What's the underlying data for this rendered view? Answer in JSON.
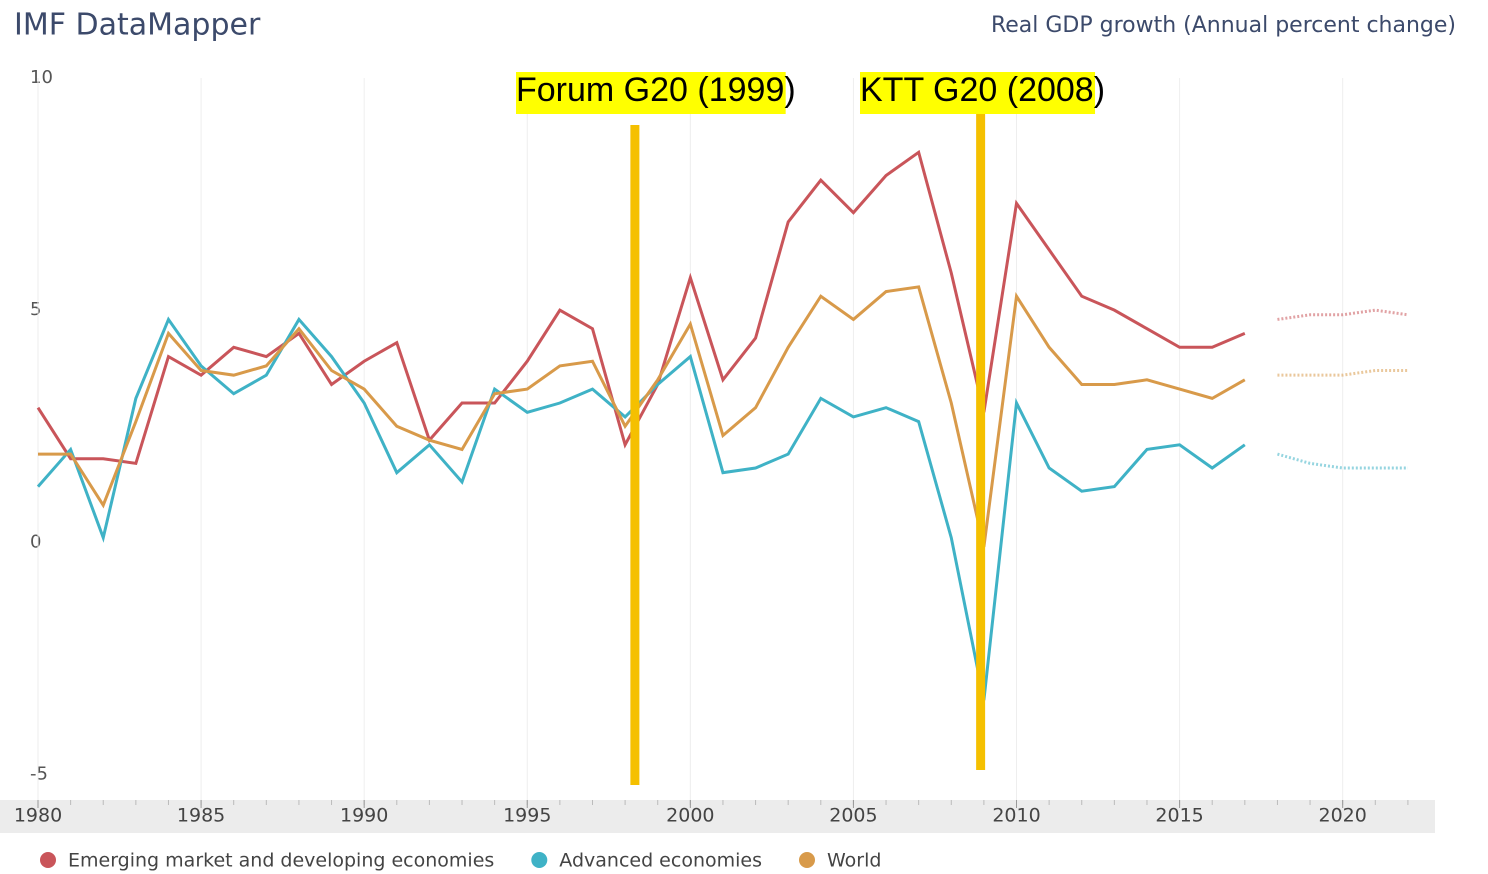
{
  "chart_data": {
    "type": "line",
    "title": "IMF DataMapper",
    "subtitle": "Real GDP growth (Annual percent change)",
    "x": [
      1980,
      1981,
      1982,
      1983,
      1984,
      1985,
      1986,
      1987,
      1988,
      1989,
      1990,
      1991,
      1992,
      1993,
      1994,
      1995,
      1996,
      1997,
      1998,
      1999,
      2000,
      2001,
      2002,
      2003,
      2004,
      2005,
      2006,
      2007,
      2008,
      2009,
      2010,
      2011,
      2012,
      2013,
      2014,
      2015,
      2016,
      2017,
      2018,
      2019,
      2020,
      2021,
      2022
    ],
    "series": [
      {
        "name": "Emerging market and developing economies",
        "color": "#c9555a",
        "values": [
          2.9,
          1.8,
          1.8,
          1.7,
          4.0,
          3.6,
          4.2,
          4.0,
          4.5,
          3.4,
          3.9,
          4.3,
          2.2,
          3.0,
          3.0,
          3.9,
          5.0,
          4.6,
          2.1,
          3.4,
          5.7,
          3.5,
          4.4,
          6.9,
          7.8,
          7.1,
          7.9,
          8.4,
          5.8,
          2.8,
          7.3,
          6.3,
          5.3,
          5.0,
          4.6,
          4.2,
          4.2,
          4.5,
          4.8,
          4.9,
          4.9,
          5.0,
          4.9
        ]
      },
      {
        "name": "Advanced economies",
        "color": "#3fb2c6",
        "values": [
          1.2,
          2.0,
          0.1,
          3.1,
          4.8,
          3.8,
          3.2,
          3.6,
          4.8,
          4.0,
          3.0,
          1.5,
          2.1,
          1.3,
          3.3,
          2.8,
          3.0,
          3.3,
          2.7,
          3.4,
          4.0,
          1.5,
          1.6,
          1.9,
          3.1,
          2.7,
          2.9,
          2.6,
          0.1,
          -3.4,
          3.0,
          1.6,
          1.1,
          1.2,
          2.0,
          2.1,
          1.6,
          2.1,
          1.9,
          1.7,
          1.6,
          1.6,
          1.6
        ]
      },
      {
        "name": "World",
        "color": "#d89a4a",
        "values": [
          1.9,
          1.9,
          0.8,
          2.6,
          4.5,
          3.7,
          3.6,
          3.8,
          4.6,
          3.7,
          3.3,
          2.5,
          2.2,
          2.0,
          3.2,
          3.3,
          3.8,
          3.9,
          2.5,
          3.5,
          4.7,
          2.3,
          2.9,
          4.2,
          5.3,
          4.8,
          5.4,
          5.5,
          3.0,
          -0.1,
          5.3,
          4.2,
          3.4,
          3.4,
          3.5,
          3.3,
          3.1,
          3.5,
          3.6,
          3.6,
          3.6,
          3.7,
          3.7
        ]
      }
    ],
    "projection_from": 2017,
    "xlim": [
      1980,
      2022.8
    ],
    "xticks": [
      1980,
      1985,
      1990,
      1995,
      2000,
      2005,
      2010,
      2015,
      2020
    ],
    "ylim": [
      -5.55,
      10
    ],
    "yticks": [
      10,
      5,
      0,
      -5
    ],
    "grid": "x",
    "annotations": [
      {
        "text": "Forum G20 (1999)",
        "x": 1998.3,
        "color": "#f5c000"
      },
      {
        "text": "KTT G20 (2008)",
        "x": 2008.9,
        "color": "#f5c000"
      }
    ]
  }
}
